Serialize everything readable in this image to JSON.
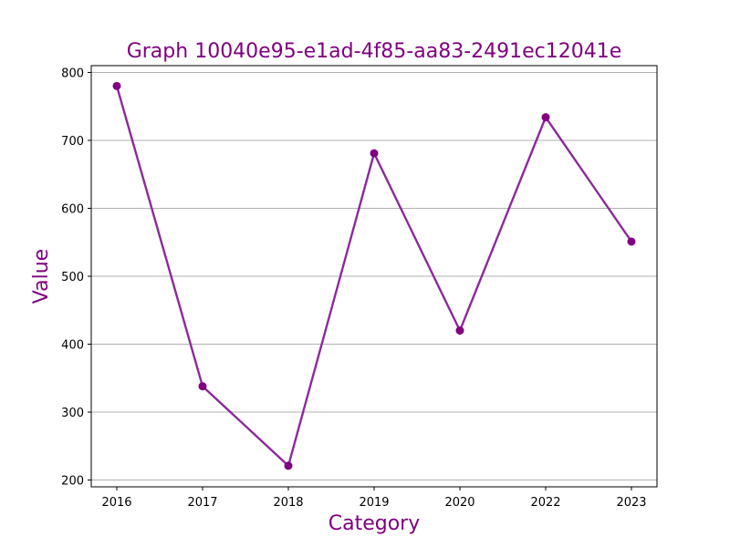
{
  "colors": {
    "accent": "#800080",
    "line": "#8b2a9b",
    "grid": "#b0b0b0",
    "axis": "#000000"
  },
  "chart_data": {
    "type": "line",
    "title": "Graph 10040e95-e1ad-4f85-aa83-2491ec12041e",
    "xlabel": "Category",
    "ylabel": "Value",
    "categories": [
      "2016",
      "2017",
      "2018",
      "2019",
      "2020",
      "2022",
      "2023"
    ],
    "values": [
      780,
      338,
      221,
      681,
      420,
      734,
      551
    ],
    "ylim": [
      190,
      810
    ],
    "yticks": [
      200,
      300,
      400,
      500,
      600,
      700,
      800
    ],
    "grid": "y-major",
    "marker": "circle"
  }
}
